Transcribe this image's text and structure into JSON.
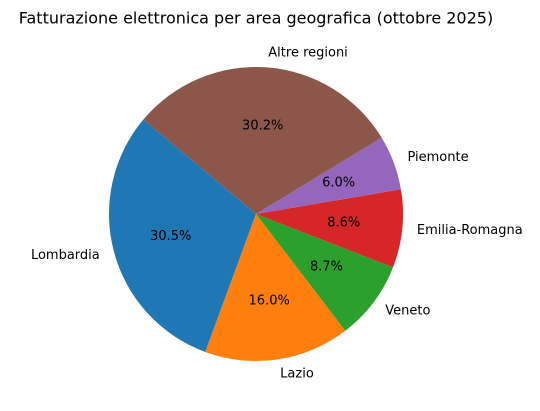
{
  "chart_data": {
    "type": "pie",
    "title": "Fatturazione elettronica per area geografica (ottobre 2025)",
    "categories": [
      "Lombardia",
      "Lazio",
      "Veneto",
      "Emilia-Romagna",
      "Piemonte",
      "Altre regioni"
    ],
    "values": [
      30.5,
      16.0,
      8.7,
      8.6,
      6.0,
      30.2
    ],
    "value_labels": [
      "30.5%",
      "16.0%",
      "8.7%",
      "8.6%",
      "6.0%",
      "30.2%"
    ],
    "colors": [
      "#1f77b4",
      "#ff7f0e",
      "#2ca02c",
      "#d62728",
      "#9467bd",
      "#8c564b"
    ],
    "startangle": 140
  }
}
